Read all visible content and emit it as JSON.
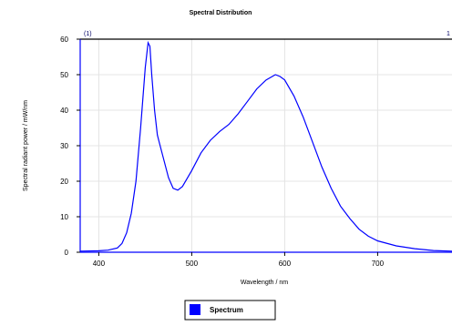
{
  "chart_data": {
    "type": "line",
    "title": "Spectral Distribution",
    "xlabel": "Wavelength / nm",
    "ylabel": "Spectral radiant power / mW/nm",
    "xlim": [
      380,
      780
    ],
    "ylim": [
      0,
      60
    ],
    "x_ticks": [
      400,
      500,
      600,
      700
    ],
    "y_ticks": [
      0,
      10,
      20,
      30,
      40,
      50,
      60
    ],
    "grid": true,
    "legend_position": "bottom-center",
    "top_markers": [
      "(1)",
      "1"
    ],
    "series": [
      {
        "name": "Spectrum",
        "color": "#0000ff",
        "x": [
          380,
          400,
          410,
          420,
          425,
          430,
          435,
          440,
          445,
          450,
          453,
          455,
          457,
          460,
          463,
          465,
          470,
          475,
          480,
          485,
          490,
          500,
          510,
          520,
          530,
          540,
          550,
          560,
          570,
          580,
          590,
          595,
          600,
          610,
          620,
          630,
          640,
          650,
          660,
          670,
          680,
          690,
          700,
          720,
          740,
          760,
          780
        ],
        "y": [
          0.3,
          0.4,
          0.6,
          1.2,
          2.5,
          5.5,
          11,
          20,
          35,
          52,
          59,
          58,
          50,
          40,
          33,
          31,
          26,
          21,
          18,
          17.5,
          18.5,
          23,
          28,
          31.5,
          34,
          36,
          39,
          42.5,
          46,
          48.5,
          50,
          49.5,
          48.5,
          44,
          38,
          31,
          24,
          18,
          13,
          9.5,
          6.5,
          4.5,
          3.2,
          1.8,
          1.0,
          0.5,
          0.3
        ]
      }
    ]
  }
}
